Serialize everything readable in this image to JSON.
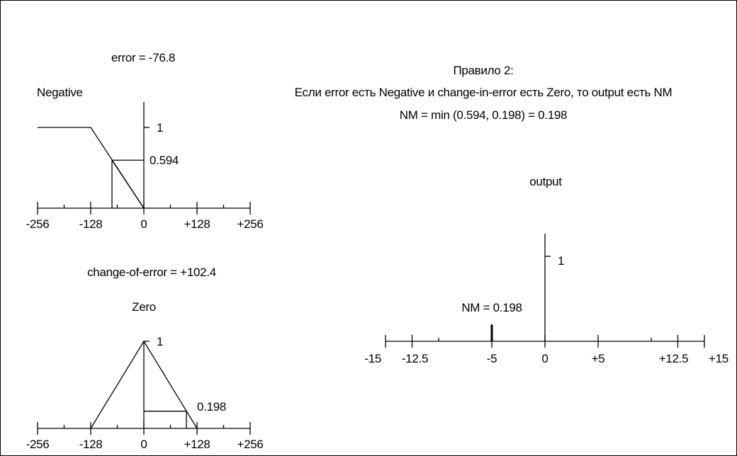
{
  "error_chart": {
    "title": "error = -76.8",
    "set_label": "Negative",
    "input": -76.8,
    "membership": 0.594,
    "membership_label": "0.594",
    "peak_label": "1",
    "ticks": [
      {
        "value": -256,
        "label": "-256"
      },
      {
        "value": -128,
        "label": "-128"
      },
      {
        "value": 0,
        "label": "0"
      },
      {
        "value": 128,
        "label": "+128"
      },
      {
        "value": 256,
        "label": "+256"
      }
    ],
    "minor_ticks": [
      -192,
      -64,
      64,
      192
    ],
    "shape": [
      [
        -256,
        1
      ],
      [
        -128,
        1
      ],
      [
        0,
        0
      ]
    ]
  },
  "change_chart": {
    "title": "change-of-error = +102.4",
    "set_label": "Zero",
    "input": 102.4,
    "membership": 0.198,
    "membership_label": "0.198",
    "peak_label": "1",
    "ticks": [
      {
        "value": -256,
        "label": "-256"
      },
      {
        "value": -128,
        "label": "-128"
      },
      {
        "value": 0,
        "label": "0"
      },
      {
        "value": 128,
        "label": "+128"
      },
      {
        "value": 256,
        "label": "+256"
      }
    ],
    "minor_ticks": [
      -192,
      -64,
      64,
      192
    ],
    "shape": [
      [
        -128,
        0
      ],
      [
        0,
        1
      ],
      [
        128,
        0
      ]
    ]
  },
  "rule": {
    "title": "Правило 2:",
    "text": "Если error есть Negative и change-in-error есть Zero, то output есть NM",
    "formula": "NM = min (0.594, 0.198) = 0.198"
  },
  "output_chart": {
    "title": "output",
    "peak_label": "1",
    "bar_value": -5,
    "bar_height": 0.198,
    "bar_label": "NM = 0.198",
    "ticks": [
      {
        "value": -15,
        "label": "-15"
      },
      {
        "value": -12.5,
        "label": "-12.5"
      },
      {
        "value": -5,
        "label": "-5"
      },
      {
        "value": 0,
        "label": "0"
      },
      {
        "value": 5,
        "label": "+5"
      },
      {
        "value": 12.5,
        "label": "+12.5"
      },
      {
        "value": 15,
        "label": "+15"
      }
    ],
    "minor_ticks": [
      -10,
      10
    ]
  }
}
